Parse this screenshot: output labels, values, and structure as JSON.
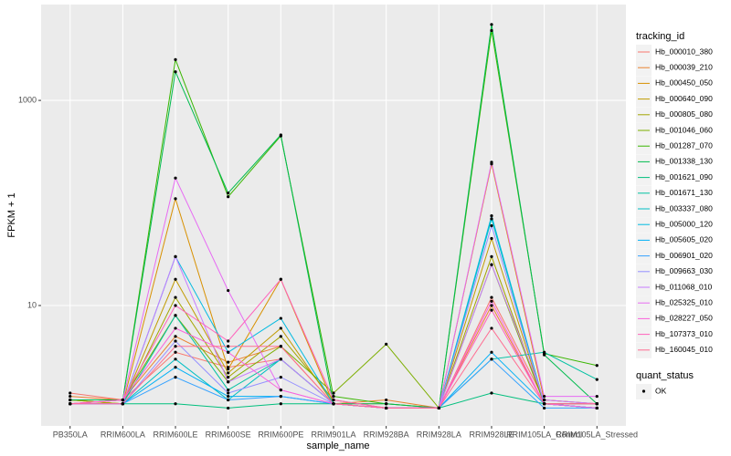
{
  "chart_data": {
    "type": "line",
    "x_label": "sample_name",
    "y_label": "FPKM + 1",
    "yscale": "log",
    "ylim": [
      0.67,
      8600
    ],
    "yticks": [
      10,
      1000
    ],
    "grid": true,
    "legend_title": "tracking_id",
    "legend_position": "right",
    "shape_legend_title": "quant_status",
    "shape_levels": [
      "OK"
    ],
    "point_color": "#000000",
    "categories": [
      "PB350LA",
      "RRIM600LA",
      "RRIM600LE",
      "RRIM600SE",
      "RRIM600PE",
      "RRIM901LA",
      "RRIM928BA",
      "RRIM928LA",
      "RRIM928LE",
      "RRIM105LA_Control",
      "RRIM105LA_Stressed"
    ],
    "series": [
      {
        "name": "Hb_000010_380",
        "color": "#F8766D",
        "values": [
          1.4,
          1.2,
          3.5,
          2.5,
          3,
          1.1,
          1.1,
          1,
          12,
          1.2,
          1.1
        ]
      },
      {
        "name": "Hb_000039_210",
        "color": "#EA8331",
        "values": [
          1.3,
          1.2,
          5,
          2.8,
          4,
          1.1,
          1.2,
          1,
          10,
          1.1,
          1.1
        ]
      },
      {
        "name": "Hb_000450_050",
        "color": "#D89000",
        "values": [
          1.2,
          1.1,
          110,
          2.4,
          18,
          1.1,
          1,
          1,
          240,
          1.2,
          1.1
        ]
      },
      {
        "name": "Hb_000640_090",
        "color": "#C09B00",
        "values": [
          1.2,
          1.1,
          18,
          2.2,
          6,
          1.1,
          1,
          1,
          45,
          1.1,
          1.1
        ]
      },
      {
        "name": "Hb_000805_080",
        "color": "#A3A500",
        "values": [
          1.2,
          1.1,
          12,
          2,
          5,
          1.2,
          1,
          1,
          30,
          1.1,
          1
        ]
      },
      {
        "name": "Hb_001046_060",
        "color": "#7CAE00",
        "values": [
          1.1,
          1.2,
          8,
          1.8,
          4,
          1.4,
          4.2,
          1,
          25,
          1.1,
          1
        ]
      },
      {
        "name": "Hb_001287_070",
        "color": "#39B600",
        "values": [
          1.1,
          1.2,
          2500,
          115,
          450,
          1.3,
          1.1,
          1,
          4800,
          3.4,
          2.6
        ]
      },
      {
        "name": "Hb_001338_130",
        "color": "#00BB4E",
        "values": [
          1.2,
          1.2,
          1900,
          125,
          460,
          1.1,
          1.1,
          1,
          5500,
          3.3,
          1.1
        ]
      },
      {
        "name": "Hb_001621_090",
        "color": "#00BF7D",
        "values": [
          1.1,
          1.1,
          1.1,
          1,
          1.1,
          1.1,
          1,
          1,
          1.4,
          1.1,
          1.1
        ]
      },
      {
        "name": "Hb_001671_130",
        "color": "#00C1A3",
        "values": [
          1.1,
          1.1,
          8,
          1.5,
          3,
          1.1,
          1,
          1,
          3,
          3.5,
          1.9
        ]
      },
      {
        "name": "Hb_003337_080",
        "color": "#00BFC4",
        "values": [
          1.1,
          1.1,
          3,
          1.2,
          3,
          1.1,
          1,
          1,
          70,
          1.1,
          1
        ]
      },
      {
        "name": "Hb_005000_120",
        "color": "#00BAE0",
        "values": [
          1.1,
          1.1,
          30,
          3.5,
          7.5,
          1.1,
          1,
          1,
          75,
          1.1,
          1
        ]
      },
      {
        "name": "Hb_005605_020",
        "color": "#00B0F6",
        "values": [
          1.1,
          1.1,
          2.5,
          1.3,
          1.3,
          1.1,
          1,
          1,
          3.5,
          1.1,
          1
        ]
      },
      {
        "name": "Hb_006901_020",
        "color": "#35A2FF",
        "values": [
          1.1,
          1.1,
          2,
          1.2,
          1.3,
          1.1,
          1,
          1,
          3,
          1,
          1
        ]
      },
      {
        "name": "Hb_009663_030",
        "color": "#9590FF",
        "values": [
          1.1,
          1.1,
          4.5,
          1.4,
          2,
          1.1,
          1,
          1,
          60,
          1.1,
          1
        ]
      },
      {
        "name": "Hb_011068_010",
        "color": "#C77CFF",
        "values": [
          1.1,
          1.1,
          30,
          1.8,
          3,
          1.1,
          1,
          1,
          25,
          1.2,
          1.1
        ]
      },
      {
        "name": "Hb_025325_010",
        "color": "#E76BF3",
        "values": [
          1.1,
          1.2,
          175,
          14,
          1.5,
          1.1,
          1,
          1,
          250,
          1.3,
          1.3
        ]
      },
      {
        "name": "Hb_028227_050",
        "color": "#FA62DB",
        "values": [
          1.1,
          1.2,
          6,
          3.5,
          1.5,
          1.1,
          1,
          1,
          11,
          1.1,
          1
        ]
      },
      {
        "name": "Hb_107373_010",
        "color": "#FF62BC",
        "values": [
          1.1,
          1.2,
          10,
          4.5,
          18,
          1.2,
          1,
          1,
          9,
          1.1,
          1.1
        ]
      },
      {
        "name": "Hb_160045_010",
        "color": "#FF6C91",
        "values": [
          1.1,
          1.1,
          4,
          4,
          4,
          1.1,
          1,
          1,
          6,
          1.1,
          1.1
        ]
      }
    ]
  }
}
